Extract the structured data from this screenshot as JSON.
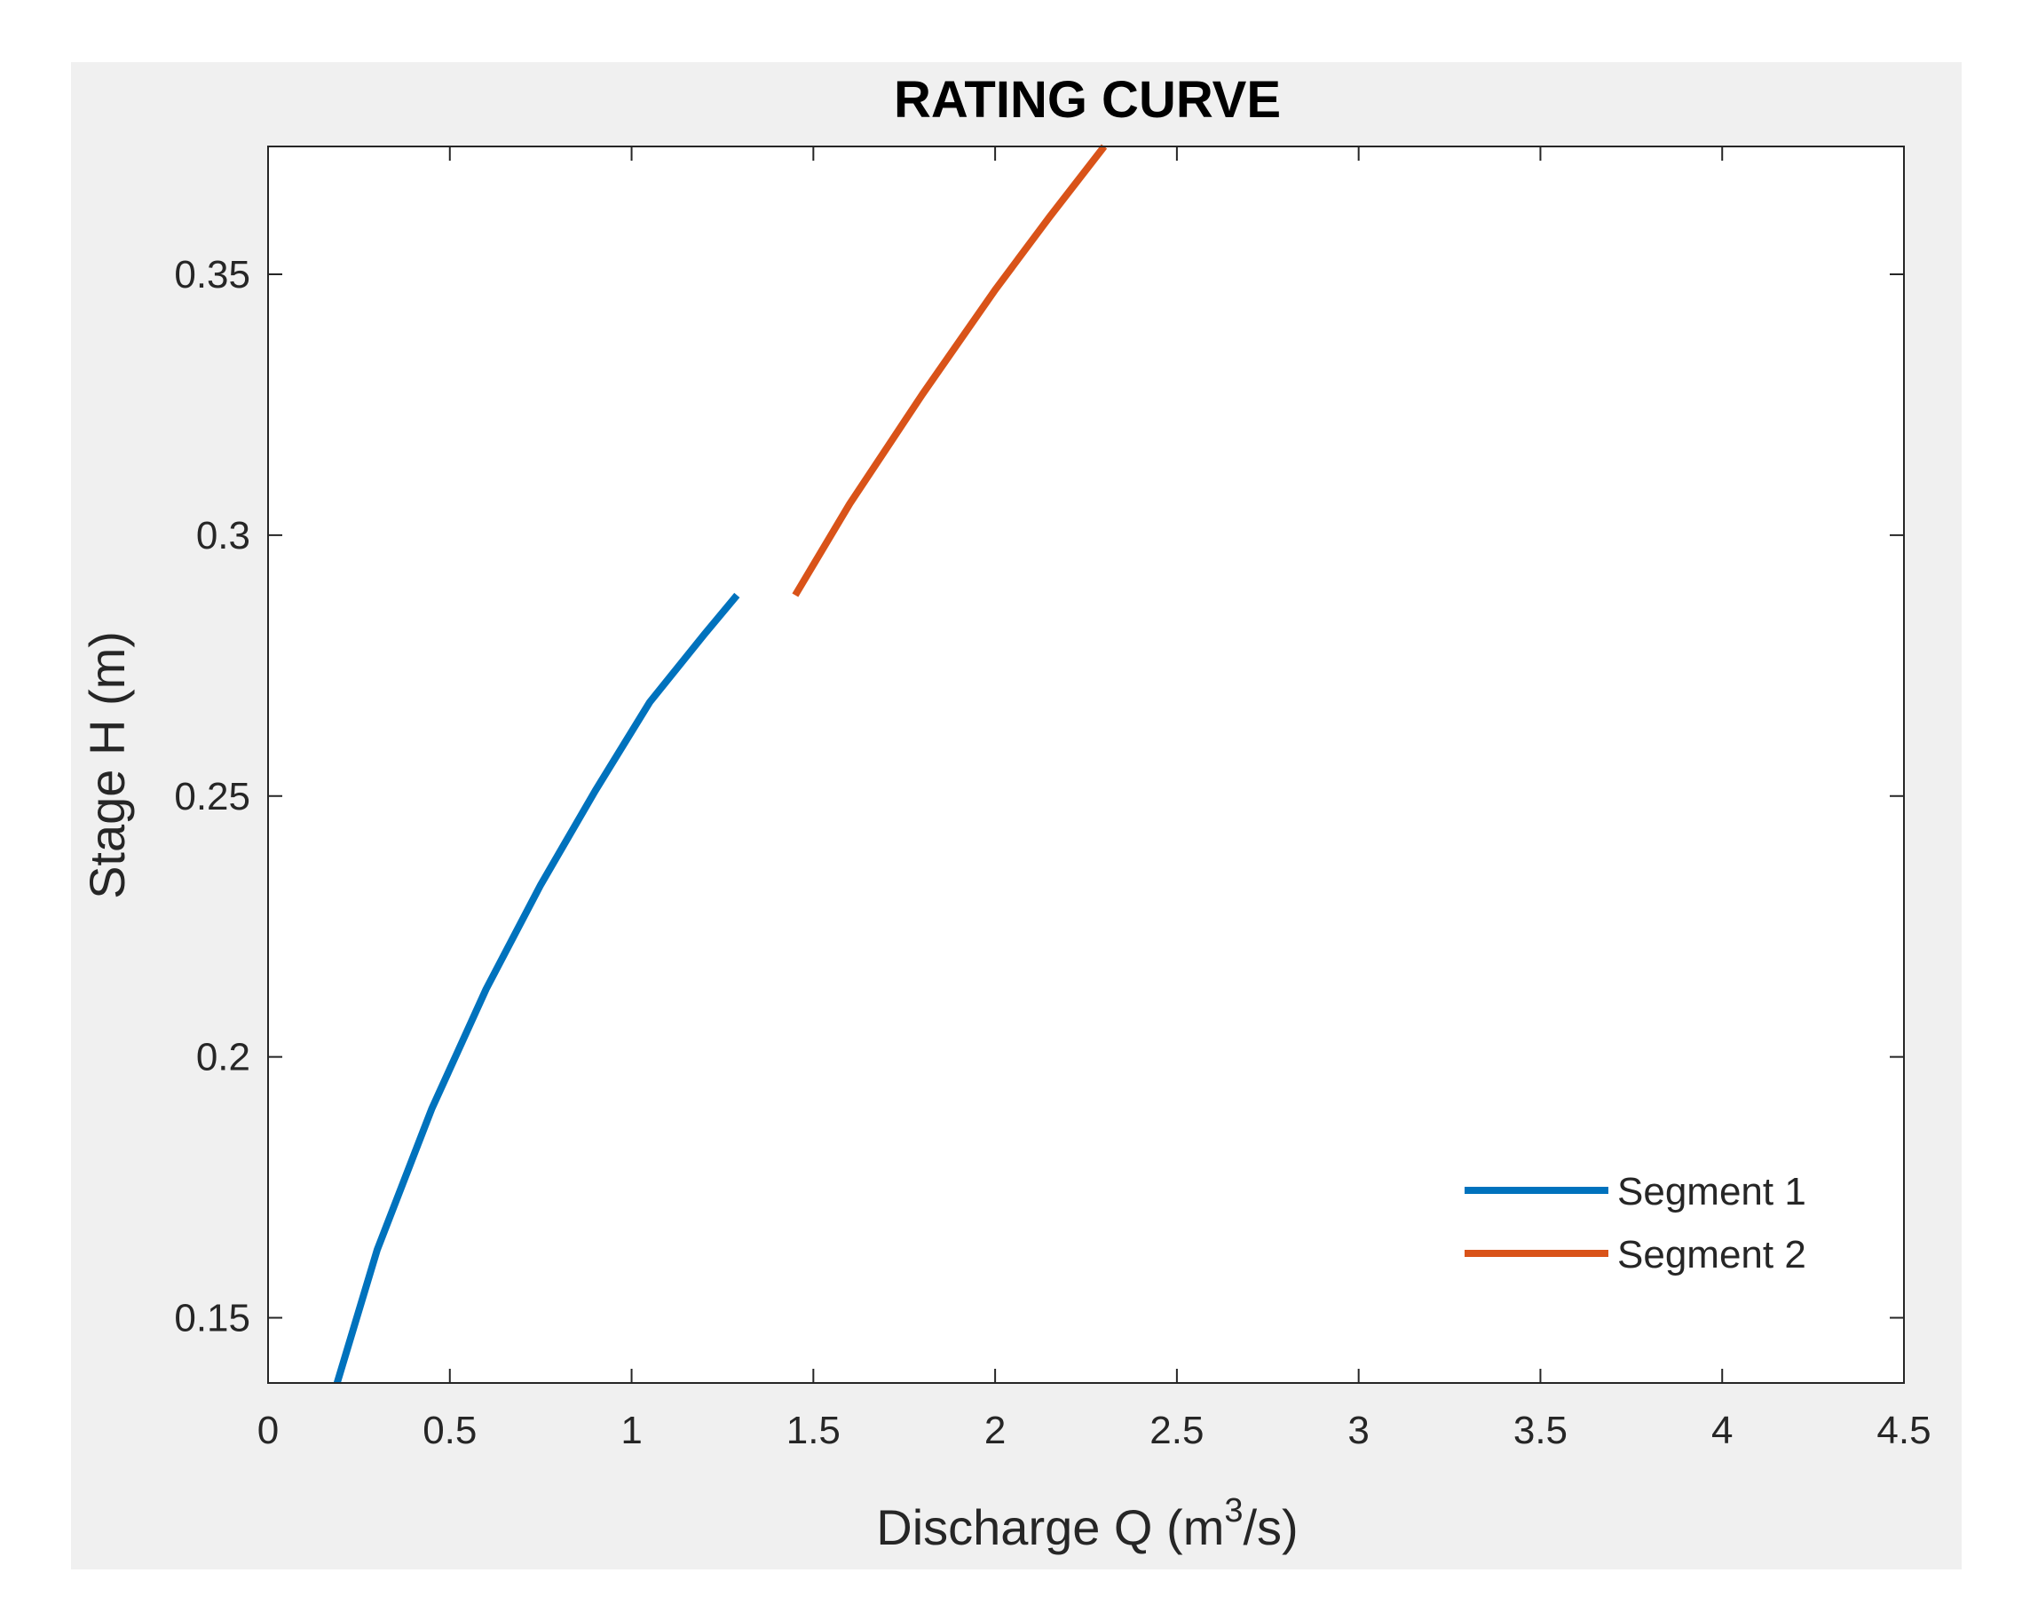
{
  "chart_data": {
    "type": "line",
    "title": "RATING CURVE",
    "xlabel": "Discharge Q (m",
    "xlabel_superscript": "3",
    "xlabel_suffix": "/s)",
    "ylabel": "Stage H (m)",
    "xlim": [
      0,
      4.5
    ],
    "ylim": [
      0.1375,
      0.3745
    ],
    "xticks": [
      0,
      0.5,
      1,
      1.5,
      2,
      2.5,
      3,
      3.5,
      4,
      4.5
    ],
    "xtick_labels": [
      "0",
      "0.5",
      "1",
      "1.5",
      "2",
      "2.5",
      "3",
      "3.5",
      "4",
      "4.5"
    ],
    "yticks": [
      0.15,
      0.2,
      0.25,
      0.3,
      0.35
    ],
    "ytick_labels": [
      "0.15",
      "0.2",
      "0.25",
      "0.3",
      "0.35"
    ],
    "grid": false,
    "legend_location": "bottom-right",
    "series": [
      {
        "name": "Segment 1",
        "color": "#0072BD",
        "x": [
          0.19,
          0.3,
          0.45,
          0.6,
          0.75,
          0.9,
          1.05,
          1.2,
          1.29
        ],
        "y": [
          0.1375,
          0.163,
          0.19,
          0.213,
          0.233,
          0.251,
          0.268,
          0.281,
          0.2885
        ]
      },
      {
        "name": "Segment 2",
        "color": "#D95319",
        "x": [
          1.45,
          1.6,
          1.8,
          2.0,
          2.15,
          2.3
        ],
        "y": [
          0.2885,
          0.306,
          0.327,
          0.347,
          0.361,
          0.3745
        ]
      }
    ]
  },
  "colors": {
    "figure_background": "#F0F0F0",
    "axes_background": "#FFFFFF",
    "axes_color": "#262626"
  }
}
